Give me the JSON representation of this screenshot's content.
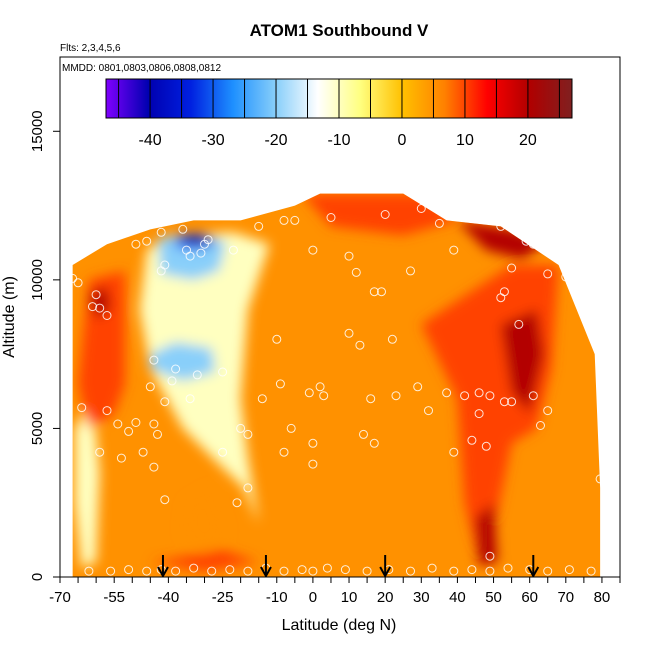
{
  "chart_data": {
    "type": "heatmap",
    "title": "ATOM1 Southbound V",
    "annotations": [
      "Flts: 2,3,4,5,6",
      "MMDD: 0801,0803,0806,0808,0812"
    ],
    "xlabel": "Latitude (deg N)",
    "ylabel": "Altitude (m)",
    "xlim": [
      -70,
      85
    ],
    "ylim": [
      0,
      17500
    ],
    "x_ticks": [
      -70,
      -55,
      -40,
      -25,
      -10,
      0,
      10,
      20,
      30,
      40,
      50,
      60,
      70,
      80
    ],
    "y_ticks": [
      0,
      5000,
      10000,
      15000
    ],
    "colorbar": {
      "min": -47,
      "max": 27,
      "ticks": [
        -40,
        -30,
        -20,
        -10,
        0,
        10,
        20
      ],
      "colors": [
        "#8000ff",
        "#0000b0",
        "#0020e0",
        "#1e90ff",
        "#87cefa",
        "#ffffff",
        "#ffff80",
        "#ffc000",
        "#ff8000",
        "#ff0000",
        "#b00000",
        "#802020"
      ]
    },
    "arrows_latitude": [
      -41.5,
      -13,
      20,
      61
    ],
    "profile_top": [
      [
        -66.5,
        10500
      ],
      [
        -57,
        11200
      ],
      [
        -45,
        11700
      ],
      [
        -33,
        12000
      ],
      [
        -20,
        12000
      ],
      [
        -5,
        12500
      ],
      [
        2,
        12900
      ],
      [
        25,
        12900
      ],
      [
        37,
        12000
      ],
      [
        52,
        11800
      ],
      [
        68,
        10500
      ],
      [
        78,
        7500
      ],
      [
        79.5,
        3000
      ]
    ],
    "contours": [
      {
        "value": -10,
        "region": [
          [
            -46,
            11000
          ],
          [
            -40,
            11500
          ],
          [
            -22,
            11600
          ],
          [
            -12,
            11200
          ],
          [
            -18,
            9000
          ],
          [
            -20,
            6000
          ],
          [
            -18,
            4000
          ],
          [
            -15,
            1800
          ],
          [
            -19,
            3000
          ],
          [
            -26,
            3800
          ],
          [
            -36,
            5000
          ],
          [
            -45,
            7000
          ],
          [
            -48,
            9000
          ],
          [
            -46,
            11000
          ]
        ]
      },
      {
        "value": -10,
        "region": [
          [
            -66,
            5000
          ],
          [
            -61,
            6000
          ],
          [
            -59,
            3500
          ],
          [
            -60,
            500
          ],
          [
            -64,
            300
          ],
          [
            -66,
            2500
          ],
          [
            -66,
            5000
          ]
        ]
      },
      {
        "value": -20,
        "region": [
          [
            -43,
            11400
          ],
          [
            -35,
            11500
          ],
          [
            -24,
            11300
          ],
          [
            -26,
            10300
          ],
          [
            -33,
            10000
          ],
          [
            -42,
            10200
          ],
          [
            -43,
            11400
          ]
        ]
      },
      {
        "value": -20,
        "region": [
          [
            -45,
            7500
          ],
          [
            -38,
            7900
          ],
          [
            -28,
            7700
          ],
          [
            -27,
            6900
          ],
          [
            -36,
            6600
          ],
          [
            -45,
            7000
          ],
          [
            -45,
            7500
          ]
        ]
      },
      {
        "value": -30,
        "region": [
          [
            -38,
            11500
          ],
          [
            -30,
            11550
          ],
          [
            -26,
            11300
          ],
          [
            -32,
            11000
          ],
          [
            -38,
            11100
          ],
          [
            -38,
            11500
          ]
        ]
      },
      {
        "value": -40,
        "region": [
          [
            -36,
            11480
          ],
          [
            -29,
            11500
          ],
          [
            -28,
            11200
          ],
          [
            -34,
            11150
          ],
          [
            -36,
            11480
          ]
        ]
      },
      {
        "value": 5,
        "region": [
          [
            -35,
            2500
          ],
          [
            -28,
            3000
          ],
          [
            -24,
            1500
          ],
          [
            -30,
            800
          ],
          [
            -36,
            1500
          ],
          [
            -35,
            2500
          ]
        ]
      },
      {
        "value": 10,
        "region": [
          [
            -3,
            12900
          ],
          [
            30,
            12900
          ],
          [
            40,
            12000
          ],
          [
            25,
            11500
          ],
          [
            5,
            11800
          ],
          [
            -3,
            12900
          ]
        ]
      },
      {
        "value": 10,
        "region": [
          [
            -62,
            10000
          ],
          [
            -52,
            10300
          ],
          [
            -52,
            6500
          ],
          [
            -55,
            5500
          ],
          [
            -62,
            5000
          ],
          [
            -65,
            6500
          ],
          [
            -62,
            10000
          ]
        ]
      },
      {
        "value": 10,
        "region": [
          [
            30,
            8500
          ],
          [
            55,
            10500
          ],
          [
            68,
            10500
          ],
          [
            66,
            7000
          ],
          [
            62,
            5000
          ],
          [
            55,
            4500
          ],
          [
            50,
            1500
          ],
          [
            46,
            500
          ],
          [
            42,
            2500
          ],
          [
            40,
            6000
          ],
          [
            30,
            8500
          ]
        ]
      },
      {
        "value": 10,
        "region": [
          [
            -45,
            500
          ],
          [
            -25,
            900
          ],
          [
            -15,
            500
          ],
          [
            -30,
            200
          ],
          [
            -45,
            500
          ]
        ]
      },
      {
        "value": 20,
        "region": [
          [
            -62,
            9500
          ],
          [
            -57,
            9800
          ],
          [
            -56,
            9000
          ],
          [
            -60,
            8700
          ],
          [
            -62,
            9500
          ]
        ]
      },
      {
        "value": 20,
        "region": [
          [
            40,
            12000
          ],
          [
            55,
            11700
          ],
          [
            65,
            11300
          ],
          [
            58,
            10700
          ],
          [
            48,
            11000
          ],
          [
            40,
            12000
          ]
        ]
      },
      {
        "value": 20,
        "region": [
          [
            52,
            8500
          ],
          [
            62,
            9000
          ],
          [
            64,
            7500
          ],
          [
            60,
            5500
          ],
          [
            55,
            6200
          ],
          [
            52,
            8500
          ]
        ]
      },
      {
        "value": 20,
        "region": [
          [
            45,
            2000
          ],
          [
            50,
            2500
          ],
          [
            51,
            500
          ],
          [
            46,
            400
          ],
          [
            45,
            2000
          ]
        ]
      }
    ],
    "points": [
      [
        -66.5,
        10050
      ],
      [
        -65,
        9900
      ],
      [
        -60,
        9500
      ],
      [
        -61,
        9100
      ],
      [
        -59,
        9050
      ],
      [
        -57,
        8800
      ],
      [
        -64,
        5700
      ],
      [
        -57,
        5600
      ],
      [
        -54,
        5150
      ],
      [
        -49,
        5200
      ],
      [
        -51,
        4900
      ],
      [
        -44,
        5150
      ],
      [
        -43,
        4800
      ],
      [
        -59,
        4200
      ],
      [
        -53,
        4000
      ],
      [
        -47,
        4200
      ],
      [
        -44,
        3700
      ],
      [
        -41,
        2600
      ],
      [
        -45,
        6400
      ],
      [
        -44,
        7300
      ],
      [
        -41,
        5900
      ],
      [
        -34,
        6000
      ],
      [
        -39,
        6600
      ],
      [
        -38,
        7000
      ],
      [
        -32,
        6800
      ],
      [
        -25,
        6900
      ],
      [
        -41,
        10500
      ],
      [
        -42,
        10300
      ],
      [
        -42,
        11600
      ],
      [
        -34,
        10800
      ],
      [
        -30,
        11200
      ],
      [
        -29,
        11350
      ],
      [
        -22,
        11000
      ],
      [
        -25,
        4200
      ],
      [
        -18,
        4800
      ],
      [
        -20,
        5000
      ],
      [
        -14,
        6000
      ],
      [
        -21,
        2500
      ],
      [
        -18,
        3000
      ],
      [
        -5,
        12000
      ],
      [
        -10,
        8000
      ],
      [
        -9,
        6500
      ],
      [
        -8,
        4200
      ],
      [
        -6,
        5000
      ],
      [
        0,
        11000
      ],
      [
        2,
        6400
      ],
      [
        0,
        4500
      ],
      [
        0,
        3800
      ],
      [
        3,
        6100
      ],
      [
        -1,
        6200
      ],
      [
        10,
        10800
      ],
      [
        12,
        10250
      ],
      [
        13,
        7800
      ],
      [
        10,
        8200
      ],
      [
        14,
        4800
      ],
      [
        16,
        6000
      ],
      [
        17,
        4500
      ],
      [
        17,
        9600
      ],
      [
        19,
        9600
      ],
      [
        22,
        8000
      ],
      [
        23,
        6100
      ],
      [
        26,
        13200
      ],
      [
        27,
        10300
      ],
      [
        29,
        6400
      ],
      [
        32,
        5600
      ],
      [
        35,
        11900
      ],
      [
        37,
        6200
      ],
      [
        39,
        4200
      ],
      [
        39,
        11000
      ],
      [
        42,
        6100
      ],
      [
        44,
        4600
      ],
      [
        46,
        6200
      ],
      [
        46,
        5500
      ],
      [
        48,
        4400
      ],
      [
        49,
        6100
      ],
      [
        53,
        5900
      ],
      [
        55,
        5900
      ],
      [
        53,
        9600
      ],
      [
        52,
        9400
      ],
      [
        57,
        8500
      ],
      [
        61,
        6100
      ],
      [
        63,
        5100
      ],
      [
        65,
        5600
      ],
      [
        67,
        11300
      ],
      [
        70,
        10100
      ],
      [
        72,
        9800
      ],
      [
        79.5,
        3300
      ],
      [
        65,
        10200
      ],
      [
        61,
        11200
      ],
      [
        55,
        10400
      ],
      [
        49,
        700
      ],
      [
        -62,
        200
      ],
      [
        -56,
        200
      ],
      [
        -51,
        250
      ],
      [
        -46,
        200
      ],
      [
        -42,
        250
      ],
      [
        -38,
        200
      ],
      [
        -33,
        300
      ],
      [
        -28,
        200
      ],
      [
        -23,
        250
      ],
      [
        -18,
        200
      ],
      [
        -13,
        300
      ],
      [
        -8,
        200
      ],
      [
        -3,
        250
      ],
      [
        0,
        200
      ],
      [
        4,
        300
      ],
      [
        9,
        250
      ],
      [
        15,
        200
      ],
      [
        21,
        250
      ],
      [
        27,
        200
      ],
      [
        33,
        300
      ],
      [
        39,
        200
      ],
      [
        44,
        250
      ],
      [
        49,
        200
      ],
      [
        54,
        300
      ],
      [
        60,
        250
      ],
      [
        65,
        200
      ],
      [
        71,
        250
      ],
      [
        77,
        200
      ],
      [
        -49,
        11200
      ],
      [
        -46,
        11300
      ],
      [
        -36,
        11700
      ],
      [
        -15,
        11800
      ],
      [
        -8,
        12000
      ],
      [
        5,
        12100
      ],
      [
        20,
        12200
      ],
      [
        30,
        12400
      ],
      [
        47,
        12100
      ],
      [
        52,
        11800
      ],
      [
        59,
        11300
      ],
      [
        -35,
        11000
      ],
      [
        -31,
        10900
      ]
    ]
  }
}
